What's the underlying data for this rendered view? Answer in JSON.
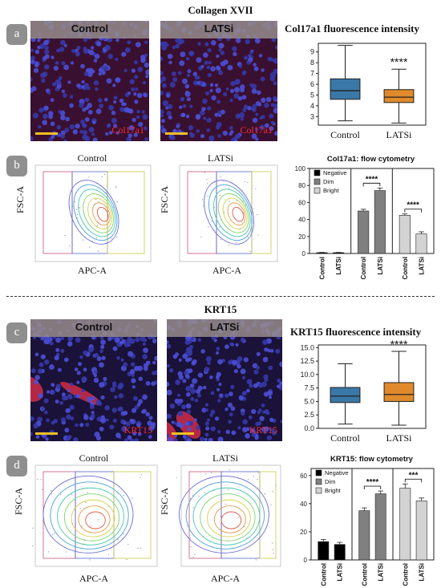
{
  "sections": [
    {
      "title": "Collagen XVII"
    },
    {
      "title": "KRT15"
    }
  ],
  "panels": {
    "a": {
      "badge": "a",
      "images": [
        {
          "label": "Control",
          "stain": "Col17a1"
        },
        {
          "label": "LATSi",
          "stain": "Col17a1"
        }
      ]
    },
    "b": {
      "badge": "b",
      "plots": [
        {
          "title": "Control",
          "xlabel": "APC-A",
          "ylabel": "FSC-A"
        },
        {
          "title": "LATSi",
          "xlabel": "APC-A",
          "ylabel": "FSC-A"
        }
      ]
    },
    "c": {
      "badge": "c",
      "images": [
        {
          "label": "Control",
          "stain": "KRT15"
        },
        {
          "label": "LATSi",
          "stain": "KRT15"
        }
      ]
    },
    "d": {
      "badge": "d",
      "plots": [
        {
          "title": "Control",
          "xlabel": "APC-A",
          "ylabel": "FSC-A"
        },
        {
          "title": "LATSi",
          "xlabel": "APC-A",
          "ylabel": "FSC-A"
        }
      ]
    }
  },
  "colors": {
    "control": "#3a78a8",
    "latsi": "#e08a2b",
    "negative": "#000000",
    "dim": "#808080",
    "bright": "#d3d3d3"
  },
  "chart_data": [
    {
      "id": "a",
      "type": "box",
      "title": "Col17a1 fluorescence intensity",
      "categories": [
        "Control",
        "LATSi"
      ],
      "boxes": [
        {
          "min": 2.6,
          "q1": 4.6,
          "median": 5.4,
          "q3": 6.5,
          "max": 9.6
        },
        {
          "min": 2.4,
          "q1": 4.3,
          "median": 4.8,
          "q3": 5.5,
          "max": 7.4
        }
      ],
      "ylim": [
        2.2,
        9.8
      ],
      "yticks": [
        "3",
        "4",
        "5",
        "6",
        "7",
        "8",
        "9"
      ],
      "annotation": "****"
    },
    {
      "id": "b",
      "type": "bar",
      "title": "Col17a1: flow cytometry",
      "groups": [
        "Negative",
        "Dim",
        "Bright"
      ],
      "categories": [
        "Control",
        "LATSi"
      ],
      "series": [
        {
          "name": "Negative",
          "values": [
            1,
            1
          ],
          "errors": [
            0.3,
            0.3
          ]
        },
        {
          "name": "Dim",
          "values": [
            50,
            74
          ],
          "errors": [
            2,
            3
          ]
        },
        {
          "name": "Bright",
          "values": [
            45,
            23
          ],
          "errors": [
            1.5,
            2.5
          ]
        }
      ],
      "ylim": [
        0,
        100
      ],
      "yticks": [
        "0",
        "20",
        "40",
        "60",
        "80",
        "100"
      ],
      "annotations": [
        "****",
        "****"
      ],
      "legend": [
        "Negative",
        "Dim",
        "Bright"
      ]
    },
    {
      "id": "c",
      "type": "box",
      "title": "KRT15 fluorescence intensity",
      "categories": [
        "Control",
        "LATSi"
      ],
      "boxes": [
        {
          "min": 0.8,
          "q1": 4.8,
          "median": 6.0,
          "q3": 7.6,
          "max": 12.0
        },
        {
          "min": 0.6,
          "q1": 5.0,
          "median": 6.3,
          "q3": 8.5,
          "max": 14.3
        }
      ],
      "ylim": [
        0,
        15.5
      ],
      "yticks": [
        "0.0",
        "2.5",
        "5.0",
        "7.5",
        "10.0",
        "12.5",
        "15.0"
      ],
      "annotation": "****"
    },
    {
      "id": "d",
      "type": "bar",
      "title": "KRT15: flow cytometry",
      "groups": [
        "Negative",
        "Dim",
        "Bright"
      ],
      "categories": [
        "Control",
        "LATSi"
      ],
      "series": [
        {
          "name": "Negative",
          "values": [
            13,
            11
          ],
          "errors": [
            1.5,
            1.5
          ]
        },
        {
          "name": "Dim",
          "values": [
            35,
            47
          ],
          "errors": [
            2,
            2
          ]
        },
        {
          "name": "Bright",
          "values": [
            51,
            42
          ],
          "errors": [
            3,
            2
          ]
        }
      ],
      "ylim": [
        0,
        65
      ],
      "yticks": [
        "0",
        "20",
        "40",
        "60"
      ],
      "annotations": [
        "****",
        "***"
      ],
      "legend": [
        "Negative",
        "Dim",
        "Bright"
      ]
    }
  ]
}
